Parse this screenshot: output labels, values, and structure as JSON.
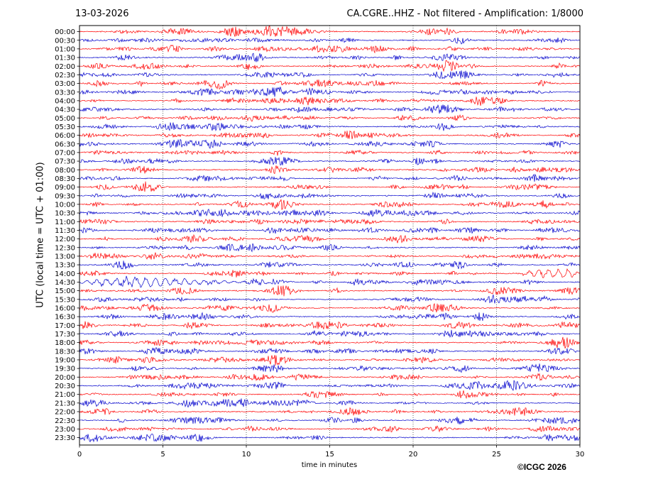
{
  "header": {
    "date": "13-03-2026",
    "title": "CA.CGRE..HHZ - Not filtered - Amplification: 1/8000"
  },
  "footer": {
    "copyright": "©ICGC 2026"
  },
  "chart_data": {
    "type": "line",
    "title": "CA.CGRE..HHZ - Not filtered - Amplification: 1/8000",
    "xlabel": "time in minutes",
    "ylabel": "UTC (local time = UTC + 01:00)",
    "xlim": [
      0,
      30
    ],
    "xticks": [
      0,
      5,
      10,
      15,
      20,
      25,
      30
    ],
    "grid": "vertical dotted",
    "colors": [
      "#ff0000",
      "#0000cc"
    ],
    "rows": [
      "00:00",
      "00:30",
      "01:00",
      "01:30",
      "02:00",
      "02:30",
      "03:00",
      "03:30",
      "04:00",
      "04:30",
      "05:00",
      "05:30",
      "06:00",
      "06:30",
      "07:00",
      "07:30",
      "08:00",
      "08:30",
      "09:00",
      "09:30",
      "10:00",
      "10:30",
      "11:00",
      "11:30",
      "12:00",
      "12:30",
      "13:00",
      "13:30",
      "14:00",
      "14:30",
      "15:00",
      "15:30",
      "16:00",
      "16:30",
      "17:00",
      "17:30",
      "18:00",
      "18:30",
      "19:00",
      "19:30",
      "20:00",
      "20:30",
      "21:00",
      "21:30",
      "22:00",
      "22:30",
      "23:00",
      "23:30"
    ],
    "events": [
      {
        "row": "14:30",
        "start_min": 0,
        "end_min": 13,
        "peak_min": 4.5,
        "description": "low-frequency wave train"
      },
      {
        "row": "14:00",
        "start_min": 26.5,
        "end_min": 30,
        "peak_min": 29.5,
        "description": "onset of low-frequency waves"
      }
    ]
  }
}
